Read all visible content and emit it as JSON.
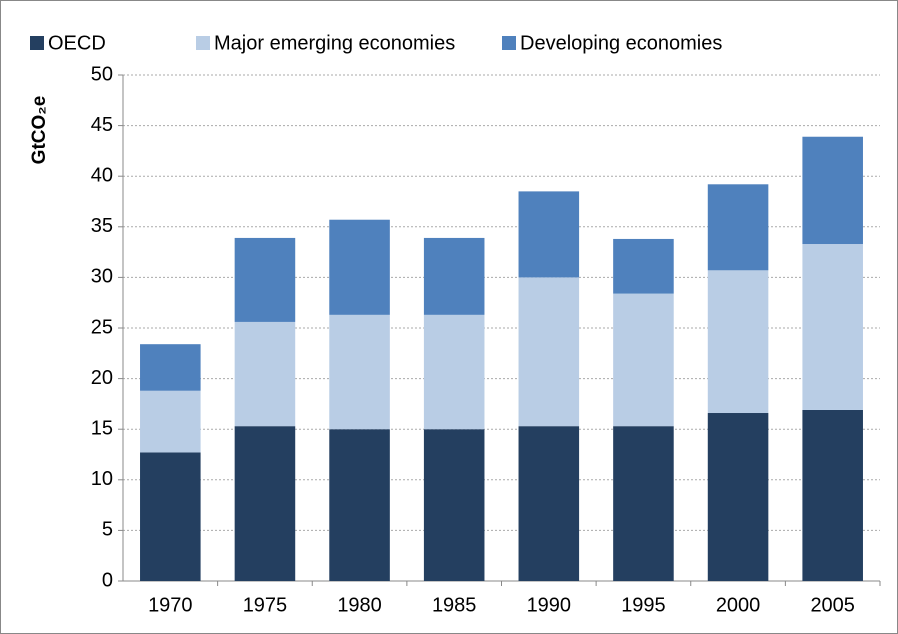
{
  "chart_data": {
    "type": "stacked_bar",
    "y_label": "GtCO₂e",
    "categories": [
      "1970",
      "1975",
      "1980",
      "1985",
      "1990",
      "1995",
      "2000",
      "2005"
    ],
    "series": [
      {
        "name": "OECD",
        "color": "#243f60",
        "values": [
          12.7,
          15.3,
          15.0,
          15.0,
          15.3,
          15.3,
          16.6,
          16.9
        ]
      },
      {
        "name": "Major emerging economies",
        "color": "#b9cde5",
        "values": [
          6.1,
          10.3,
          11.3,
          11.3,
          14.7,
          13.1,
          14.1,
          16.4
        ]
      },
      {
        "name": "Developing economies",
        "color": "#4f81bd",
        "values": [
          4.6,
          8.3,
          9.4,
          7.6,
          8.5,
          5.4,
          8.5,
          10.6
        ]
      }
    ],
    "ylim": [
      0,
      50
    ],
    "yticks": [
      0,
      5,
      10,
      15,
      20,
      25,
      30,
      35,
      40,
      45,
      50
    ],
    "grid": true
  }
}
